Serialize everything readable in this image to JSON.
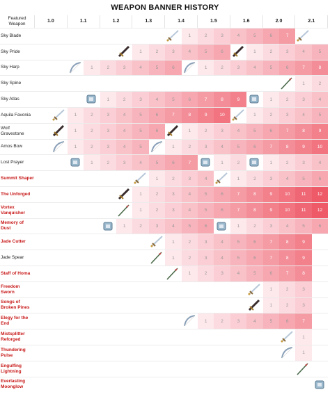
{
  "title": "WEAPON BANNER HISTORY",
  "header_label": "Featured Weapon",
  "versions": [
    "1.0",
    "1.1",
    "1.2",
    "1.3",
    "1.4",
    "1.5",
    "1.6",
    "2.0",
    "2.1"
  ],
  "colors": {
    "base": "#ffffff",
    "heat_max": "#ee5a68",
    "red_name": "#c81818"
  },
  "weapons": [
    {
      "name": "Sky Blade",
      "red": false,
      "icons": [
        {
          "c": 8,
          "t": "sword"
        },
        {
          "c": 16,
          "t": "sword"
        }
      ],
      "cells": [
        [
          9,
          "1"
        ],
        [
          10,
          "2"
        ],
        [
          11,
          "3"
        ],
        [
          12,
          "4"
        ],
        [
          13,
          "5"
        ],
        [
          14,
          "6"
        ],
        [
          15,
          "7"
        ]
      ]
    },
    {
      "name": "Sky Pride",
      "red": false,
      "icons": [
        {
          "c": 5,
          "t": "claymore"
        },
        {
          "c": 12,
          "t": "claymore"
        }
      ],
      "cells": [
        [
          6,
          "1"
        ],
        [
          7,
          "2"
        ],
        [
          8,
          "3"
        ],
        [
          9,
          "4"
        ],
        [
          10,
          "5"
        ],
        [
          11,
          "6"
        ],
        [
          13,
          "1"
        ],
        [
          14,
          "2"
        ],
        [
          15,
          "3"
        ],
        [
          16,
          "4"
        ],
        [
          17,
          "5"
        ]
      ]
    },
    {
      "name": "Sky Harp",
      "red": false,
      "icons": [
        {
          "c": 2,
          "t": "bow"
        },
        {
          "c": 9,
          "t": "bow"
        }
      ],
      "cells": [
        [
          3,
          "1"
        ],
        [
          4,
          "2"
        ],
        [
          5,
          "3"
        ],
        [
          6,
          "4"
        ],
        [
          7,
          "5"
        ],
        [
          8,
          "6"
        ],
        [
          10,
          "1"
        ],
        [
          11,
          "2"
        ],
        [
          12,
          "3"
        ],
        [
          13,
          "4"
        ],
        [
          14,
          "5"
        ],
        [
          15,
          "6"
        ],
        [
          16,
          "7"
        ],
        [
          17,
          "8"
        ]
      ]
    },
    {
      "name": "Sky Spine",
      "red": false,
      "icons": [
        {
          "c": 15,
          "t": "polearm"
        }
      ],
      "cells": [
        [
          16,
          "1"
        ],
        [
          17,
          "2"
        ]
      ]
    },
    {
      "name": "Sky Atlas",
      "red": false,
      "icons": [
        {
          "c": 3,
          "t": "catalyst"
        },
        {
          "c": 13,
          "t": "catalyst"
        }
      ],
      "cells": [
        [
          4,
          "1"
        ],
        [
          5,
          "2"
        ],
        [
          6,
          "3"
        ],
        [
          7,
          "4"
        ],
        [
          8,
          "5"
        ],
        [
          9,
          "6"
        ],
        [
          10,
          "7"
        ],
        [
          11,
          "8"
        ],
        [
          12,
          "9"
        ],
        [
          14,
          "1"
        ],
        [
          15,
          "2"
        ],
        [
          16,
          "3"
        ],
        [
          17,
          "4"
        ]
      ]
    },
    {
      "name": "Aquila Favonia",
      "red": false,
      "icons": [
        {
          "c": 1,
          "t": "sword"
        },
        {
          "c": 12,
          "t": "sword"
        }
      ],
      "cells": [
        [
          2,
          "1"
        ],
        [
          3,
          "2"
        ],
        [
          4,
          "3"
        ],
        [
          5,
          "4"
        ],
        [
          6,
          "5"
        ],
        [
          7,
          "6"
        ],
        [
          8,
          "7"
        ],
        [
          9,
          "8"
        ],
        [
          10,
          "9"
        ],
        [
          11,
          "10"
        ],
        [
          13,
          "1"
        ],
        [
          14,
          "2"
        ],
        [
          15,
          "3"
        ],
        [
          16,
          "4"
        ],
        [
          17,
          "5"
        ]
      ]
    },
    {
      "name": "Wolf Gravestone",
      "red": false,
      "icons": [
        {
          "c": 1,
          "t": "claymore"
        },
        {
          "c": 8,
          "t": "claymore"
        }
      ],
      "cells": [
        [
          2,
          "1"
        ],
        [
          3,
          "2"
        ],
        [
          4,
          "3"
        ],
        [
          5,
          "4"
        ],
        [
          6,
          "5"
        ],
        [
          7,
          "6"
        ],
        [
          9,
          "1"
        ],
        [
          10,
          "2"
        ],
        [
          11,
          "3"
        ],
        [
          12,
          "4"
        ],
        [
          13,
          "5"
        ],
        [
          14,
          "6"
        ],
        [
          15,
          "7"
        ],
        [
          16,
          "8"
        ],
        [
          17,
          "9"
        ]
      ]
    },
    {
      "name": "Amos Bow",
      "red": false,
      "icons": [
        {
          "c": 1,
          "t": "bow"
        },
        {
          "c": 7,
          "t": "bow"
        }
      ],
      "cells": [
        [
          2,
          "1"
        ],
        [
          3,
          "2"
        ],
        [
          4,
          "3"
        ],
        [
          5,
          "4"
        ],
        [
          6,
          "5"
        ],
        [
          8,
          "1"
        ],
        [
          9,
          "2"
        ],
        [
          10,
          "3"
        ],
        [
          11,
          "4"
        ],
        [
          12,
          "5"
        ],
        [
          13,
          "6"
        ],
        [
          14,
          "7"
        ],
        [
          15,
          "8"
        ],
        [
          16,
          "9"
        ],
        [
          17,
          "10"
        ]
      ]
    },
    {
      "name": "Lost Prayer",
      "red": false,
      "icons": [
        {
          "c": 2,
          "t": "catalyst"
        },
        {
          "c": 10,
          "t": "catalyst"
        },
        {
          "c": 13,
          "t": "catalyst"
        }
      ],
      "cells": [
        [
          3,
          "1"
        ],
        [
          4,
          "2"
        ],
        [
          5,
          "3"
        ],
        [
          6,
          "4"
        ],
        [
          7,
          "5"
        ],
        [
          8,
          "6"
        ],
        [
          9,
          "7"
        ],
        [
          11,
          "1"
        ],
        [
          12,
          "2"
        ],
        [
          14,
          "1"
        ],
        [
          15,
          "2"
        ],
        [
          16,
          "3"
        ],
        [
          17,
          "4"
        ]
      ]
    },
    {
      "name": "Summit Shaper",
      "red": true,
      "icons": [
        {
          "c": 6,
          "t": "sword"
        },
        {
          "c": 11,
          "t": "sword"
        }
      ],
      "cells": [
        [
          7,
          "1"
        ],
        [
          8,
          "2"
        ],
        [
          9,
          "3"
        ],
        [
          10,
          "4"
        ],
        [
          12,
          "1"
        ],
        [
          13,
          "2"
        ],
        [
          14,
          "3"
        ],
        [
          15,
          "4"
        ],
        [
          16,
          "5"
        ],
        [
          17,
          "6"
        ]
      ]
    },
    {
      "name": "The Unforged",
      "red": true,
      "icons": [
        {
          "c": 5,
          "t": "claymore"
        }
      ],
      "cells": [
        [
          6,
          "1"
        ],
        [
          7,
          "2"
        ],
        [
          8,
          "3"
        ],
        [
          9,
          "4"
        ],
        [
          10,
          "5"
        ],
        [
          11,
          "6"
        ],
        [
          12,
          "7"
        ],
        [
          13,
          "8"
        ],
        [
          14,
          "9"
        ],
        [
          15,
          "10"
        ],
        [
          16,
          "11"
        ],
        [
          17,
          "12"
        ]
      ]
    },
    {
      "name": "Vortex Vanquisher",
      "red": true,
      "icons": [
        {
          "c": 5,
          "t": "polearm"
        }
      ],
      "cells": [
        [
          6,
          "1"
        ],
        [
          7,
          "2"
        ],
        [
          8,
          "3"
        ],
        [
          9,
          "4"
        ],
        [
          10,
          "5"
        ],
        [
          11,
          "6"
        ],
        [
          12,
          "7"
        ],
        [
          13,
          "8"
        ],
        [
          14,
          "9"
        ],
        [
          15,
          "10"
        ],
        [
          16,
          "11"
        ],
        [
          17,
          "12"
        ]
      ]
    },
    {
      "name": "Memory of Dust",
      "red": true,
      "icons": [
        {
          "c": 4,
          "t": "catalyst"
        },
        {
          "c": 11,
          "t": "catalyst"
        }
      ],
      "cells": [
        [
          5,
          "1"
        ],
        [
          6,
          "2"
        ],
        [
          7,
          "3"
        ],
        [
          8,
          "4"
        ],
        [
          9,
          "5"
        ],
        [
          10,
          "6"
        ],
        [
          12,
          "1"
        ],
        [
          13,
          "2"
        ],
        [
          14,
          "3"
        ],
        [
          15,
          "4"
        ],
        [
          16,
          "5"
        ],
        [
          17,
          "6"
        ]
      ]
    },
    {
      "name": "Jade Cutter",
      "red": true,
      "icons": [
        {
          "c": 7,
          "t": "sword"
        }
      ],
      "cells": [
        [
          8,
          "1"
        ],
        [
          9,
          "2"
        ],
        [
          10,
          "3"
        ],
        [
          11,
          "4"
        ],
        [
          12,
          "5"
        ],
        [
          13,
          "6"
        ],
        [
          14,
          "7"
        ],
        [
          15,
          "8"
        ],
        [
          16,
          "9"
        ]
      ]
    },
    {
      "name": "Jade Spear",
      "red": false,
      "icons": [
        {
          "c": 7,
          "t": "polearm"
        }
      ],
      "cells": [
        [
          8,
          "1"
        ],
        [
          9,
          "2"
        ],
        [
          10,
          "3"
        ],
        [
          11,
          "4"
        ],
        [
          12,
          "5"
        ],
        [
          13,
          "6"
        ],
        [
          14,
          "7"
        ],
        [
          15,
          "8"
        ],
        [
          16,
          "9"
        ]
      ]
    },
    {
      "name": "Staff of Homa",
      "red": true,
      "icons": [
        {
          "c": 8,
          "t": "polearm"
        }
      ],
      "cells": [
        [
          9,
          "1"
        ],
        [
          10,
          "2"
        ],
        [
          11,
          "3"
        ],
        [
          12,
          "4"
        ],
        [
          13,
          "5"
        ],
        [
          14,
          "6"
        ],
        [
          15,
          "7"
        ],
        [
          16,
          "8"
        ]
      ]
    },
    {
      "name": "Freedom Sworn",
      "red": true,
      "icons": [
        {
          "c": 13,
          "t": "sword"
        }
      ],
      "cells": [
        [
          14,
          "1"
        ],
        [
          15,
          "2"
        ],
        [
          16,
          "3"
        ]
      ]
    },
    {
      "name": "Songs of Broken Pines",
      "red": true,
      "icons": [
        {
          "c": 13,
          "t": "claymore"
        }
      ],
      "cells": [
        [
          14,
          "1"
        ],
        [
          15,
          "2"
        ],
        [
          16,
          "3"
        ]
      ]
    },
    {
      "name": "Elegy for the End",
      "red": true,
      "icons": [
        {
          "c": 9,
          "t": "bow"
        }
      ],
      "cells": [
        [
          10,
          "1"
        ],
        [
          11,
          "2"
        ],
        [
          12,
          "3"
        ],
        [
          13,
          "4"
        ],
        [
          14,
          "5"
        ],
        [
          15,
          "6"
        ],
        [
          16,
          "7"
        ]
      ]
    },
    {
      "name": "Mistsplitter Reforged",
      "red": true,
      "icons": [
        {
          "c": 15,
          "t": "sword"
        }
      ],
      "cells": [
        [
          16,
          "1"
        ]
      ]
    },
    {
      "name": "Thundering Pulse",
      "red": true,
      "icons": [
        {
          "c": 15,
          "t": "bow"
        }
      ],
      "cells": [
        [
          16,
          "1"
        ]
      ]
    },
    {
      "name": "Engulfing Lightning",
      "red": true,
      "icons": [
        {
          "c": 16,
          "t": "polearm"
        }
      ],
      "cells": []
    },
    {
      "name": "Everlasting Moonglow",
      "red": true,
      "icons": [
        {
          "c": 17,
          "t": "catalyst"
        }
      ],
      "cells": []
    }
  ]
}
